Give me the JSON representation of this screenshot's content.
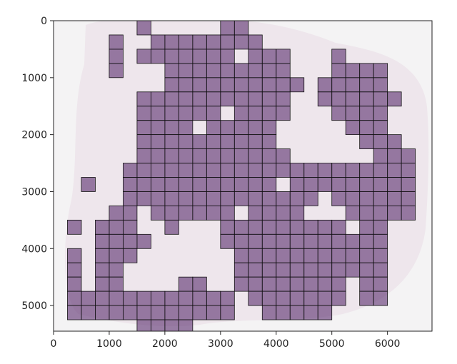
{
  "figure": {
    "x_axis": {
      "range": [
        0,
        6800
      ],
      "ticks": [
        "0",
        "1000",
        "2000",
        "3000",
        "4000",
        "5000",
        "6000"
      ]
    },
    "y_axis": {
      "range": [
        0,
        5450
      ],
      "inverted": true,
      "ticks": [
        "0",
        "1000",
        "2000",
        "3000",
        "4000",
        "5000"
      ]
    },
    "background_image": "whole-slide tissue scan, pink/purple stained tissue on light gray",
    "overlay": {
      "tile_size": 250,
      "fill_color": "#5a2d6e",
      "fill_opacity": 0.6,
      "edge_color": "#111111",
      "tiles": [
        [
          1000,
          250
        ],
        [
          1500,
          0
        ],
        [
          1750,
          250
        ],
        [
          2000,
          250
        ],
        [
          2250,
          250
        ],
        [
          2500,
          250
        ],
        [
          2750,
          250
        ],
        [
          3000,
          0
        ],
        [
          3250,
          0
        ],
        [
          3000,
          250
        ],
        [
          3250,
          250
        ],
        [
          3500,
          250
        ],
        [
          1000,
          500
        ],
        [
          1500,
          500
        ],
        [
          1750,
          500
        ],
        [
          2000,
          500
        ],
        [
          2250,
          500
        ],
        [
          2500,
          500
        ],
        [
          2750,
          500
        ],
        [
          3000,
          500
        ],
        [
          3500,
          500
        ],
        [
          3750,
          500
        ],
        [
          4000,
          500
        ],
        [
          5000,
          500
        ],
        [
          1000,
          750
        ],
        [
          2000,
          750
        ],
        [
          2250,
          750
        ],
        [
          2500,
          750
        ],
        [
          2750,
          750
        ],
        [
          3000,
          750
        ],
        [
          3250,
          750
        ],
        [
          3500,
          750
        ],
        [
          3750,
          750
        ],
        [
          4000,
          750
        ],
        [
          5000,
          750
        ],
        [
          5250,
          750
        ],
        [
          5500,
          750
        ],
        [
          5750,
          750
        ],
        [
          2000,
          1000
        ],
        [
          2250,
          1000
        ],
        [
          2500,
          1000
        ],
        [
          2750,
          1000
        ],
        [
          3000,
          1000
        ],
        [
          3250,
          1000
        ],
        [
          3500,
          1000
        ],
        [
          3750,
          1000
        ],
        [
          4000,
          1000
        ],
        [
          4250,
          1000
        ],
        [
          4750,
          1000
        ],
        [
          5000,
          1000
        ],
        [
          5250,
          1000
        ],
        [
          5500,
          1000
        ],
        [
          5750,
          1000
        ],
        [
          1500,
          1250
        ],
        [
          1750,
          1250
        ],
        [
          2000,
          1250
        ],
        [
          2250,
          1250
        ],
        [
          2500,
          1250
        ],
        [
          2750,
          1250
        ],
        [
          3000,
          1250
        ],
        [
          3250,
          1250
        ],
        [
          3500,
          1250
        ],
        [
          3750,
          1250
        ],
        [
          4000,
          1250
        ],
        [
          4750,
          1250
        ],
        [
          5000,
          1250
        ],
        [
          5250,
          1250
        ],
        [
          5500,
          1250
        ],
        [
          5750,
          1250
        ],
        [
          6000,
          1250
        ],
        [
          1500,
          1500
        ],
        [
          1750,
          1500
        ],
        [
          2000,
          1500
        ],
        [
          2250,
          1500
        ],
        [
          2500,
          1500
        ],
        [
          2750,
          1500
        ],
        [
          3250,
          1500
        ],
        [
          3500,
          1500
        ],
        [
          3750,
          1500
        ],
        [
          4000,
          1500
        ],
        [
          5000,
          1500
        ],
        [
          5250,
          1500
        ],
        [
          5500,
          1500
        ],
        [
          5750,
          1500
        ],
        [
          1500,
          1750
        ],
        [
          1750,
          1750
        ],
        [
          2000,
          1750
        ],
        [
          2250,
          1750
        ],
        [
          2750,
          1750
        ],
        [
          3000,
          1750
        ],
        [
          3250,
          1750
        ],
        [
          3500,
          1750
        ],
        [
          3750,
          1750
        ],
        [
          5250,
          1750
        ],
        [
          5500,
          1750
        ],
        [
          5750,
          1750
        ],
        [
          1500,
          2000
        ],
        [
          1750,
          2000
        ],
        [
          2000,
          2000
        ],
        [
          2250,
          2000
        ],
        [
          2500,
          2000
        ],
        [
          2750,
          2000
        ],
        [
          3000,
          2000
        ],
        [
          3250,
          2000
        ],
        [
          3500,
          2000
        ],
        [
          3750,
          2000
        ],
        [
          5500,
          2000
        ],
        [
          5750,
          2000
        ],
        [
          6000,
          2000
        ],
        [
          1500,
          2250
        ],
        [
          1750,
          2250
        ],
        [
          2000,
          2250
        ],
        [
          2250,
          2250
        ],
        [
          2500,
          2250
        ],
        [
          2750,
          2250
        ],
        [
          3000,
          2250
        ],
        [
          3250,
          2250
        ],
        [
          3500,
          2250
        ],
        [
          3750,
          2250
        ],
        [
          4000,
          2250
        ],
        [
          5750,
          2250
        ],
        [
          6000,
          2250
        ],
        [
          6250,
          2250
        ],
        [
          1250,
          2500
        ],
        [
          1500,
          2500
        ],
        [
          1750,
          2500
        ],
        [
          2000,
          2500
        ],
        [
          2250,
          2500
        ],
        [
          2500,
          2500
        ],
        [
          2750,
          2500
        ],
        [
          3000,
          2500
        ],
        [
          3250,
          2500
        ],
        [
          3500,
          2500
        ],
        [
          3750,
          2500
        ],
        [
          4000,
          2500
        ],
        [
          4250,
          2500
        ],
        [
          4500,
          2500
        ],
        [
          4750,
          2500
        ],
        [
          5000,
          2500
        ],
        [
          5250,
          2500
        ],
        [
          5500,
          2500
        ],
        [
          5750,
          2500
        ],
        [
          6000,
          2500
        ],
        [
          6250,
          2500
        ],
        [
          500,
          2750
        ],
        [
          1250,
          2750
        ],
        [
          1500,
          2750
        ],
        [
          1750,
          2750
        ],
        [
          2000,
          2750
        ],
        [
          2250,
          2750
        ],
        [
          2500,
          2750
        ],
        [
          2750,
          2750
        ],
        [
          3000,
          2750
        ],
        [
          3250,
          2750
        ],
        [
          3500,
          2750
        ],
        [
          3750,
          2750
        ],
        [
          4250,
          2750
        ],
        [
          4500,
          2750
        ],
        [
          4750,
          2750
        ],
        [
          5000,
          2750
        ],
        [
          5250,
          2750
        ],
        [
          5500,
          2750
        ],
        [
          5750,
          2750
        ],
        [
          6000,
          2750
        ],
        [
          6250,
          2750
        ],
        [
          1250,
          3000
        ],
        [
          1500,
          3000
        ],
        [
          1750,
          3000
        ],
        [
          2000,
          3000
        ],
        [
          2250,
          3000
        ],
        [
          2500,
          3000
        ],
        [
          2750,
          3000
        ],
        [
          3000,
          3000
        ],
        [
          3250,
          3000
        ],
        [
          3500,
          3000
        ],
        [
          3750,
          3000
        ],
        [
          4000,
          3000
        ],
        [
          4250,
          3000
        ],
        [
          4500,
          3000
        ],
        [
          5000,
          3000
        ],
        [
          5250,
          3000
        ],
        [
          5500,
          3000
        ],
        [
          5750,
          3000
        ],
        [
          6000,
          3000
        ],
        [
          6250,
          3000
        ],
        [
          1000,
          3250
        ],
        [
          1250,
          3250
        ],
        [
          1750,
          3250
        ],
        [
          2000,
          3250
        ],
        [
          2250,
          3250
        ],
        [
          2500,
          3250
        ],
        [
          2750,
          3250
        ],
        [
          3000,
          3250
        ],
        [
          3500,
          3250
        ],
        [
          3750,
          3250
        ],
        [
          4000,
          3250
        ],
        [
          4250,
          3250
        ],
        [
          5250,
          3250
        ],
        [
          5500,
          3250
        ],
        [
          5750,
          3250
        ],
        [
          6000,
          3250
        ],
        [
          6250,
          3250
        ],
        [
          250,
          3500
        ],
        [
          750,
          3500
        ],
        [
          1000,
          3500
        ],
        [
          1250,
          3500
        ],
        [
          2000,
          3500
        ],
        [
          3000,
          3500
        ],
        [
          3250,
          3500
        ],
        [
          3500,
          3500
        ],
        [
          3750,
          3500
        ],
        [
          4000,
          3500
        ],
        [
          4250,
          3500
        ],
        [
          4500,
          3500
        ],
        [
          4750,
          3500
        ],
        [
          5000,
          3500
        ],
        [
          5500,
          3500
        ],
        [
          5750,
          3500
        ],
        [
          750,
          3750
        ],
        [
          1000,
          3750
        ],
        [
          1250,
          3750
        ],
        [
          1500,
          3750
        ],
        [
          3000,
          3750
        ],
        [
          3250,
          3750
        ],
        [
          3500,
          3750
        ],
        [
          3750,
          3750
        ],
        [
          4000,
          3750
        ],
        [
          4250,
          3750
        ],
        [
          4500,
          3750
        ],
        [
          4750,
          3750
        ],
        [
          5000,
          3750
        ],
        [
          5250,
          3750
        ],
        [
          5500,
          3750
        ],
        [
          5750,
          3750
        ],
        [
          250,
          4000
        ],
        [
          750,
          4000
        ],
        [
          1000,
          4000
        ],
        [
          1250,
          4000
        ],
        [
          3250,
          4000
        ],
        [
          3500,
          4000
        ],
        [
          3750,
          4000
        ],
        [
          4000,
          4000
        ],
        [
          4250,
          4000
        ],
        [
          4500,
          4000
        ],
        [
          4750,
          4000
        ],
        [
          5000,
          4000
        ],
        [
          5250,
          4000
        ],
        [
          5500,
          4000
        ],
        [
          5750,
          4000
        ],
        [
          250,
          4250
        ],
        [
          750,
          4250
        ],
        [
          1000,
          4250
        ],
        [
          3250,
          4250
        ],
        [
          3500,
          4250
        ],
        [
          3750,
          4250
        ],
        [
          4000,
          4250
        ],
        [
          4250,
          4250
        ],
        [
          4500,
          4250
        ],
        [
          4750,
          4250
        ],
        [
          5000,
          4250
        ],
        [
          5250,
          4250
        ],
        [
          5500,
          4250
        ],
        [
          5750,
          4250
        ],
        [
          250,
          4500
        ],
        [
          750,
          4500
        ],
        [
          1000,
          4500
        ],
        [
          2250,
          4500
        ],
        [
          2500,
          4500
        ],
        [
          3250,
          4500
        ],
        [
          3500,
          4500
        ],
        [
          3750,
          4500
        ],
        [
          4000,
          4500
        ],
        [
          4250,
          4500
        ],
        [
          4500,
          4500
        ],
        [
          4750,
          4500
        ],
        [
          5000,
          4500
        ],
        [
          5500,
          4500
        ],
        [
          5750,
          4500
        ],
        [
          250,
          4750
        ],
        [
          500,
          4750
        ],
        [
          750,
          4750
        ],
        [
          1000,
          4750
        ],
        [
          1250,
          4750
        ],
        [
          1500,
          4750
        ],
        [
          1750,
          4750
        ],
        [
          2000,
          4750
        ],
        [
          2250,
          4750
        ],
        [
          2500,
          4750
        ],
        [
          2750,
          4750
        ],
        [
          3000,
          4750
        ],
        [
          3500,
          4750
        ],
        [
          3750,
          4750
        ],
        [
          4000,
          4750
        ],
        [
          4250,
          4750
        ],
        [
          4500,
          4750
        ],
        [
          4750,
          4750
        ],
        [
          5000,
          4750
        ],
        [
          5500,
          4750
        ],
        [
          5750,
          4750
        ],
        [
          250,
          5000
        ],
        [
          500,
          5000
        ],
        [
          750,
          5000
        ],
        [
          1000,
          5000
        ],
        [
          1250,
          5000
        ],
        [
          1500,
          5000
        ],
        [
          1750,
          5000
        ],
        [
          2000,
          5000
        ],
        [
          2250,
          5000
        ],
        [
          2500,
          5000
        ],
        [
          2750,
          5000
        ],
        [
          3000,
          5000
        ],
        [
          3750,
          5000
        ],
        [
          4000,
          5000
        ],
        [
          4250,
          5000
        ],
        [
          4500,
          5000
        ],
        [
          4750,
          5000
        ],
        [
          1500,
          5250
        ],
        [
          1750,
          5250
        ],
        [
          2000,
          5250
        ],
        [
          2250,
          5250
        ]
      ]
    }
  }
}
